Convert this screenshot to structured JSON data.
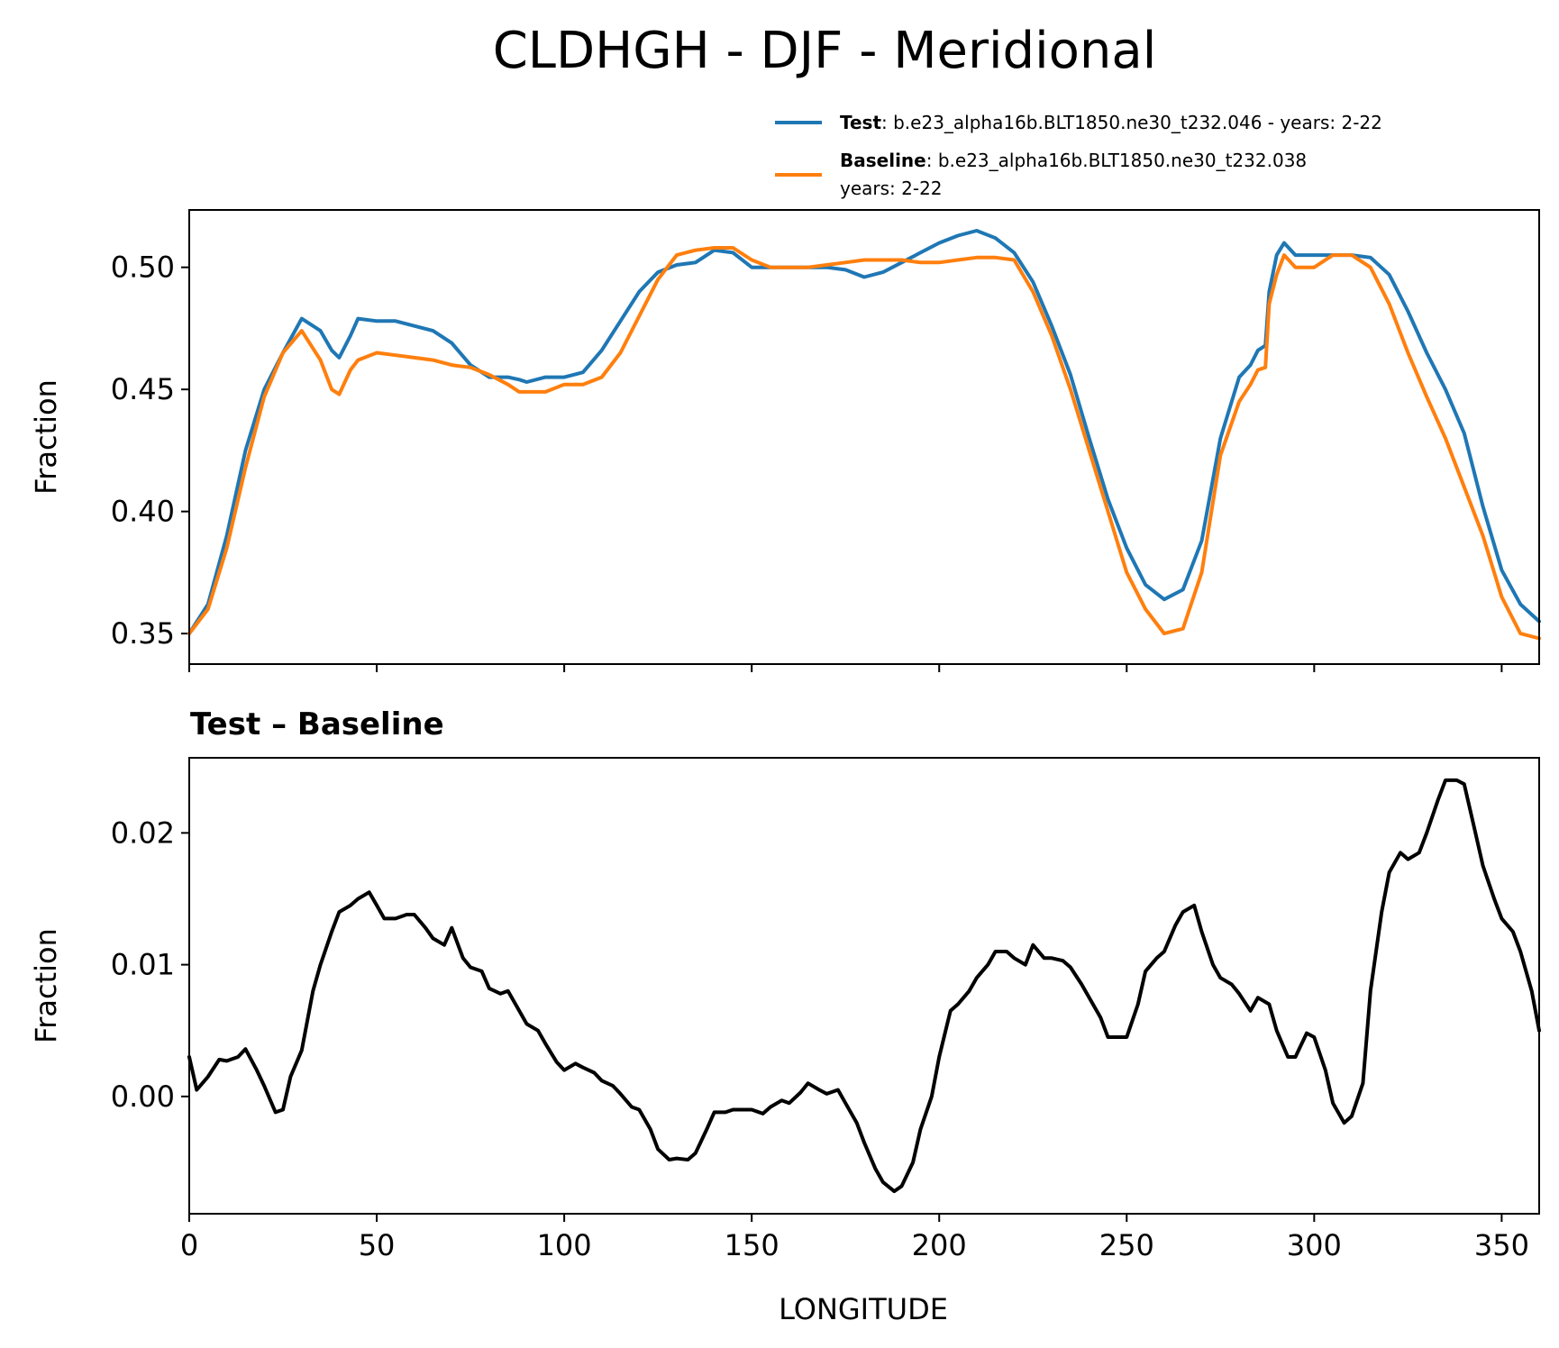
{
  "chart_data": [
    {
      "type": "line",
      "title": "CLDHGH - DJF - Meridional",
      "xlabel": "",
      "ylabel": "Fraction",
      "xlim": [
        0,
        360
      ],
      "ylim": [
        0.3375,
        0.5235
      ],
      "yticks": [
        0.35,
        0.4,
        0.45,
        0.5
      ],
      "ytick_labels": [
        "0.35",
        "0.40",
        "0.45",
        "0.50"
      ],
      "xticks": [
        0,
        50,
        100,
        150,
        200,
        250,
        300,
        350
      ],
      "legend": {
        "placement": "top-right",
        "entries": [
          {
            "name": "Test",
            "desc": ": b.e23_alpha16b.BLT1850.ne30_t232.046 - years: 2-22",
            "desc2": ""
          },
          {
            "name": "Baseline",
            "desc": ": b.e23_alpha16b.BLT1850.ne30_t232.038",
            "desc2": "years: 2-22"
          }
        ]
      },
      "series": [
        {
          "name": "Test",
          "color": "#1f77b4",
          "x": [
            0,
            5,
            10,
            15,
            20,
            25,
            30,
            35,
            38,
            40,
            43,
            45,
            50,
            55,
            60,
            65,
            70,
            75,
            80,
            85,
            88,
            90,
            95,
            100,
            105,
            110,
            115,
            120,
            125,
            130,
            135,
            140,
            145,
            150,
            155,
            160,
            165,
            170,
            175,
            180,
            185,
            190,
            195,
            200,
            205,
            210,
            215,
            220,
            225,
            230,
            235,
            240,
            245,
            250,
            255,
            260,
            265,
            270,
            275,
            280,
            283,
            285,
            287,
            288,
            290,
            292,
            295,
            300,
            305,
            310,
            315,
            320,
            325,
            330,
            335,
            340,
            345,
            350,
            355,
            360
          ],
          "values": [
            0.35,
            0.362,
            0.39,
            0.425,
            0.45,
            0.465,
            0.479,
            0.474,
            0.466,
            0.463,
            0.472,
            0.479,
            0.478,
            0.478,
            0.476,
            0.474,
            0.469,
            0.46,
            0.455,
            0.455,
            0.454,
            0.453,
            0.455,
            0.455,
            0.457,
            0.466,
            0.478,
            0.49,
            0.498,
            0.501,
            0.502,
            0.507,
            0.506,
            0.5,
            0.5,
            0.5,
            0.5,
            0.5,
            0.499,
            0.496,
            0.498,
            0.502,
            0.506,
            0.51,
            0.513,
            0.515,
            0.512,
            0.506,
            0.494,
            0.476,
            0.456,
            0.43,
            0.405,
            0.385,
            0.37,
            0.364,
            0.368,
            0.388,
            0.43,
            0.455,
            0.46,
            0.466,
            0.468,
            0.49,
            0.505,
            0.51,
            0.505,
            0.505,
            0.505,
            0.505,
            0.504,
            0.497,
            0.482,
            0.465,
            0.45,
            0.432,
            0.402,
            0.376,
            0.362,
            0.355
          ]
        },
        {
          "name": "Baseline",
          "color": "#ff7f0e",
          "x": [
            0,
            5,
            10,
            15,
            20,
            25,
            30,
            35,
            38,
            40,
            43,
            45,
            50,
            55,
            60,
            65,
            70,
            75,
            80,
            85,
            88,
            90,
            95,
            100,
            105,
            110,
            115,
            120,
            125,
            130,
            135,
            140,
            145,
            150,
            155,
            160,
            165,
            170,
            175,
            180,
            185,
            190,
            195,
            200,
            205,
            210,
            215,
            220,
            225,
            230,
            235,
            240,
            245,
            250,
            255,
            260,
            265,
            270,
            275,
            280,
            283,
            285,
            287,
            288,
            290,
            292,
            295,
            300,
            305,
            310,
            315,
            320,
            325,
            330,
            335,
            340,
            345,
            350,
            355,
            360
          ],
          "values": [
            0.35,
            0.36,
            0.385,
            0.418,
            0.447,
            0.465,
            0.474,
            0.462,
            0.45,
            0.448,
            0.458,
            0.462,
            0.465,
            0.464,
            0.463,
            0.462,
            0.46,
            0.459,
            0.456,
            0.452,
            0.449,
            0.449,
            0.449,
            0.452,
            0.452,
            0.455,
            0.465,
            0.48,
            0.495,
            0.505,
            0.507,
            0.508,
            0.508,
            0.503,
            0.5,
            0.5,
            0.5,
            0.501,
            0.502,
            0.503,
            0.503,
            0.503,
            0.502,
            0.502,
            0.503,
            0.504,
            0.504,
            0.503,
            0.49,
            0.472,
            0.45,
            0.425,
            0.4,
            0.375,
            0.36,
            0.35,
            0.352,
            0.375,
            0.423,
            0.445,
            0.452,
            0.458,
            0.459,
            0.485,
            0.497,
            0.505,
            0.5,
            0.5,
            0.505,
            0.505,
            0.5,
            0.485,
            0.465,
            0.447,
            0.43,
            0.41,
            0.39,
            0.365,
            0.35,
            0.348
          ]
        }
      ]
    },
    {
      "type": "line",
      "title": "Test – Baseline",
      "xlabel": "LONGITUDE",
      "ylabel": "Fraction",
      "xlim": [
        0,
        360
      ],
      "ylim": [
        -0.0089,
        0.0257
      ],
      "yticks": [
        0.0,
        0.01,
        0.02
      ],
      "ytick_labels": [
        "0.00",
        "0.01",
        "0.02"
      ],
      "xticks": [
        0,
        50,
        100,
        150,
        200,
        250,
        300,
        350
      ],
      "xtick_labels": [
        "0",
        "50",
        "100",
        "150",
        "200",
        "250",
        "300",
        "350"
      ],
      "series": [
        {
          "name": "Test – Baseline",
          "color": "#000000",
          "x": [
            0,
            2,
            5,
            8,
            10,
            13,
            15,
            18,
            20,
            23,
            25,
            27,
            30,
            33,
            35,
            38,
            40,
            43,
            45,
            48,
            50,
            52,
            55,
            58,
            60,
            63,
            65,
            68,
            70,
            73,
            75,
            78,
            80,
            83,
            85,
            88,
            90,
            93,
            95,
            98,
            100,
            103,
            105,
            108,
            110,
            113,
            115,
            118,
            120,
            123,
            125,
            128,
            130,
            133,
            135,
            138,
            140,
            143,
            145,
            148,
            150,
            153,
            155,
            158,
            160,
            163,
            165,
            168,
            170,
            173,
            175,
            178,
            180,
            183,
            185,
            188,
            190,
            193,
            195,
            198,
            200,
            203,
            205,
            208,
            210,
            213,
            215,
            218,
            220,
            223,
            225,
            228,
            230,
            233,
            235,
            238,
            240,
            243,
            245,
            248,
            250,
            253,
            255,
            258,
            260,
            263,
            265,
            268,
            270,
            273,
            275,
            278,
            280,
            283,
            285,
            288,
            290,
            293,
            295,
            298,
            300,
            303,
            305,
            308,
            310,
            313,
            315,
            318,
            320,
            323,
            325,
            328,
            330,
            333,
            335,
            338,
            340,
            343,
            345,
            348,
            350,
            353,
            355,
            358,
            360
          ],
          "values": [
            0.003,
            0.0005,
            0.0015,
            0.0028,
            0.0027,
            0.003,
            0.0036,
            0.002,
            0.0008,
            -0.0012,
            -0.001,
            0.0015,
            0.0035,
            0.008,
            0.01,
            0.0125,
            0.014,
            0.0145,
            0.015,
            0.0155,
            0.0145,
            0.0135,
            0.0135,
            0.0138,
            0.0138,
            0.0128,
            0.012,
            0.0115,
            0.0128,
            0.0105,
            0.0098,
            0.0095,
            0.0082,
            0.0078,
            0.008,
            0.0065,
            0.0055,
            0.005,
            0.004,
            0.0026,
            0.002,
            0.0025,
            0.0022,
            0.0018,
            0.0012,
            0.0008,
            0.0002,
            -0.0008,
            -0.001,
            -0.0025,
            -0.004,
            -0.0048,
            -0.0047,
            -0.0048,
            -0.0043,
            -0.0025,
            -0.0012,
            -0.0012,
            -0.001,
            -0.001,
            -0.001,
            -0.0013,
            -0.0008,
            -0.0003,
            -0.0005,
            0.0003,
            0.001,
            0.0005,
            0.0002,
            0.0005,
            -0.0005,
            -0.002,
            -0.0035,
            -0.0055,
            -0.0065,
            -0.0072,
            -0.0068,
            -0.005,
            -0.0025,
            0.0,
            0.003,
            0.0065,
            0.007,
            0.008,
            0.009,
            0.01,
            0.011,
            0.011,
            0.0105,
            0.01,
            0.0115,
            0.0105,
            0.0105,
            0.0103,
            0.0098,
            0.0085,
            0.0075,
            0.006,
            0.0045,
            0.0045,
            0.0045,
            0.007,
            0.0095,
            0.0105,
            0.011,
            0.013,
            0.014,
            0.0145,
            0.0125,
            0.01,
            0.009,
            0.0085,
            0.0078,
            0.0065,
            0.0075,
            0.007,
            0.005,
            0.003,
            0.003,
            0.0048,
            0.0045,
            0.002,
            -0.0005,
            -0.002,
            -0.0015,
            0.001,
            0.008,
            0.014,
            0.017,
            0.0185,
            0.018,
            0.0185,
            0.02,
            0.0225,
            0.024,
            0.024,
            0.0237,
            0.02,
            0.0175,
            0.015,
            0.0135,
            0.0125,
            0.011,
            0.008,
            0.005
          ]
        }
      ]
    }
  ]
}
